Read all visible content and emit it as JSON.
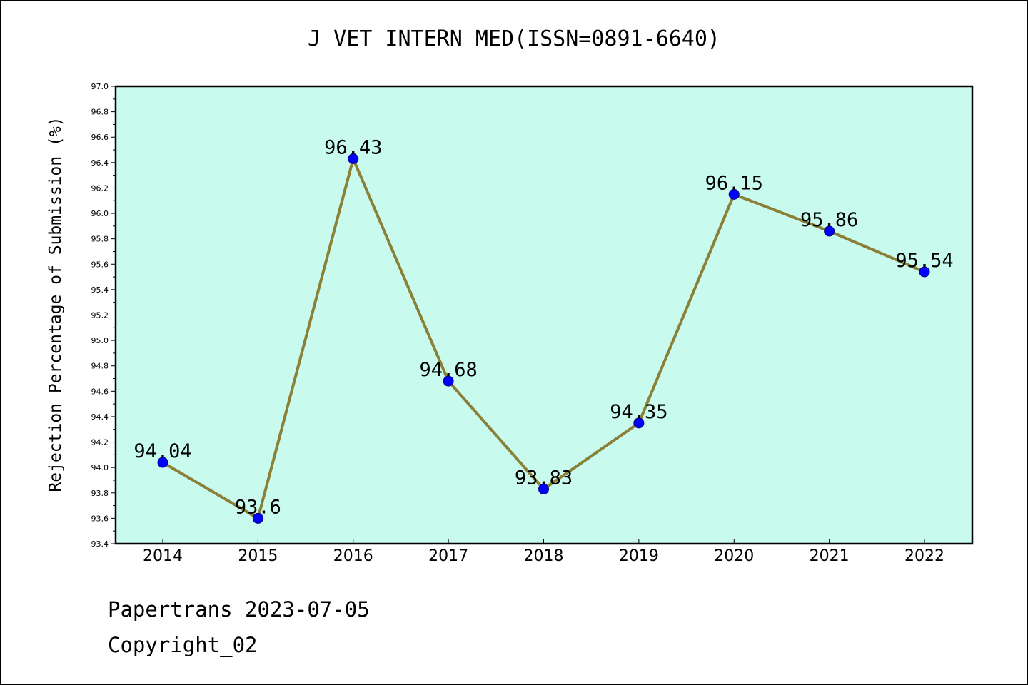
{
  "chart_data": {
    "type": "line",
    "title": "J VET INTERN MED(ISSN=0891-6640)",
    "ylabel": "Rejection Percentage of Submission (%)",
    "xlabel": "",
    "categories": [
      "2014",
      "2015",
      "2016",
      "2017",
      "2018",
      "2019",
      "2020",
      "2021",
      "2022"
    ],
    "values": [
      94.04,
      93.6,
      96.43,
      94.68,
      93.83,
      94.35,
      96.15,
      95.86,
      95.54
    ],
    "data_labels": [
      "94.04",
      "93.6",
      "96.43",
      "94.68",
      "93.83",
      "94.35",
      "96.15",
      "95.86",
      "95.54"
    ],
    "ylim": [
      93.4,
      97.0
    ],
    "yticks": [
      "93.4",
      "93.6",
      "93.8",
      "94.0",
      "94.2",
      "94.4",
      "94.6",
      "94.8",
      "95.0",
      "95.2",
      "95.4",
      "95.6",
      "95.8",
      "96.0",
      "96.2",
      "96.4",
      "96.6",
      "96.8",
      "97.0"
    ],
    "grid": false,
    "colors": {
      "plot_background": "#c8fbee",
      "line": "#8b8038",
      "marker": "#0000ff"
    }
  },
  "footer": {
    "line1": "Papertrans 2023-07-05",
    "line2": "Copyright_02"
  }
}
